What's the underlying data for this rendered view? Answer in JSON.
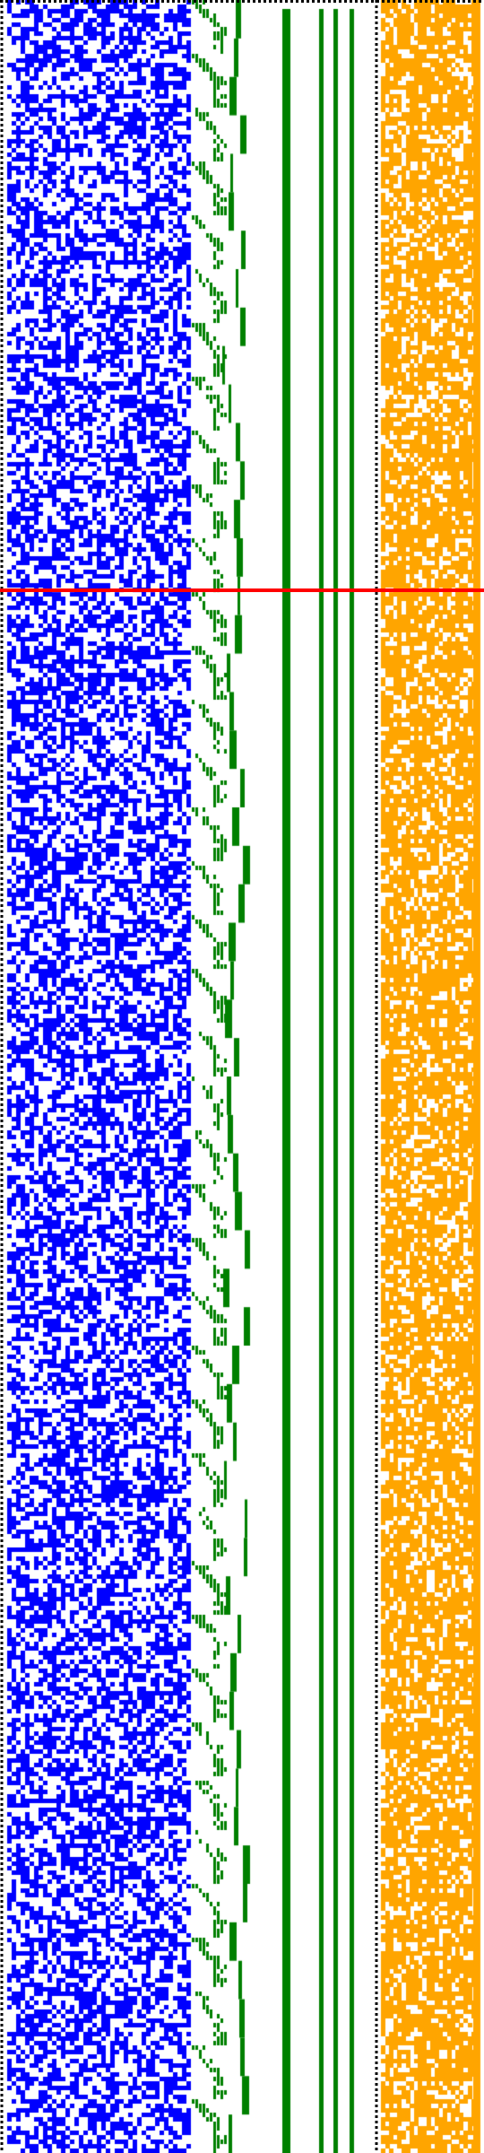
{
  "view": {
    "type": "pixel-bitmap-visualization",
    "background": "#ffffff"
  },
  "colors": {
    "bits": "#0000ff",
    "staircase": "#008000",
    "bars": "#008000",
    "mask": "#ffa500",
    "marker": "#ff0000",
    "border": "#000000"
  },
  "panels": [
    {
      "name": "blue-bit-matrix",
      "density": 0.52,
      "cols": 42
    },
    {
      "name": "green-staircase",
      "segments": 56
    },
    {
      "name": "green-bar-columns",
      "count": 4
    },
    {
      "name": "orange-mask-matrix",
      "density": 0.72,
      "cols": 24
    }
  ],
  "marker": {
    "label": "",
    "row_fraction": 0.178
  }
}
